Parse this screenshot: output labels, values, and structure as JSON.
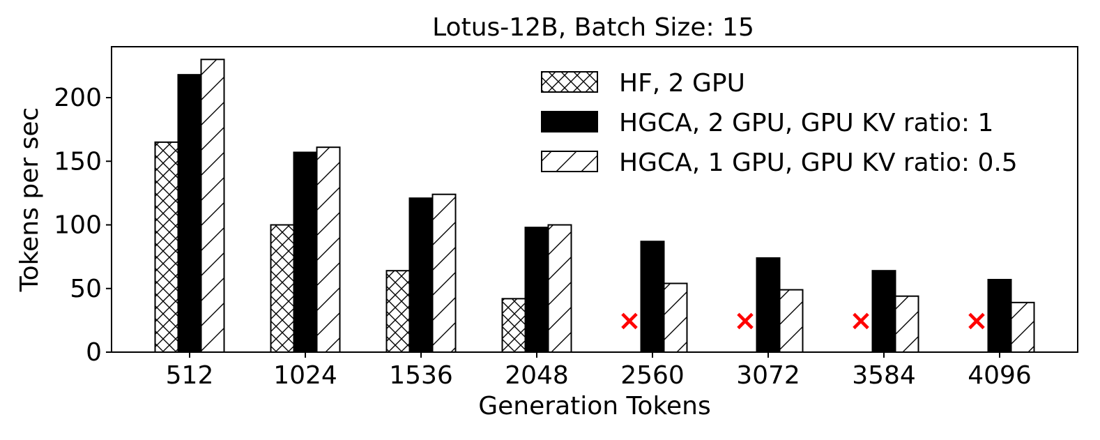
{
  "chart_data": {
    "type": "bar",
    "title": "Lotus-12B, Batch Size: 15",
    "xlabel": "Generation Tokens",
    "ylabel": "Tokens per sec",
    "categories": [
      "512",
      "1024",
      "1536",
      "2048",
      "2560",
      "3072",
      "3584",
      "4096"
    ],
    "yticks": [
      0,
      50,
      100,
      150,
      200
    ],
    "ylim": [
      0,
      240
    ],
    "grid": false,
    "legend_position": "top-right",
    "series": [
      {
        "name": "HF, 2 GPU",
        "pattern": "crosshatch",
        "values": [
          165,
          100,
          64,
          42,
          null,
          null,
          null,
          null
        ]
      },
      {
        "name": "HGCA, 2 GPU, GPU KV ratio: 1",
        "pattern": "solid",
        "values": [
          218,
          157,
          121,
          98,
          87,
          74,
          64,
          57
        ]
      },
      {
        "name": "HGCA, 1 GPU, GPU KV ratio: 0.5",
        "pattern": "diagonal",
        "values": [
          230,
          161,
          124,
          100,
          54,
          49,
          44,
          39
        ]
      }
    ],
    "missing_marker": {
      "symbol": "×",
      "color": "#ff0000"
    },
    "colors": {
      "bar_edge": "#000000",
      "solid_fill": "#000000",
      "hatch_bg": "#ffffff"
    }
  }
}
